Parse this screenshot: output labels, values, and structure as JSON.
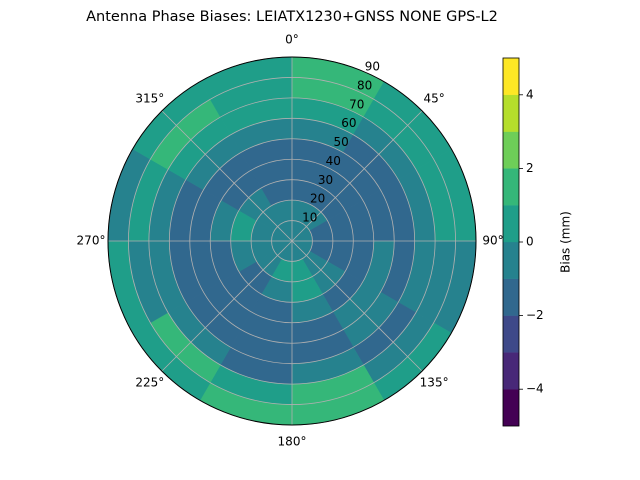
{
  "chart_data": {
    "type": "polar_contour",
    "title": "Antenna Phase Biases: LEIATX1230+GNSS NONE GPS-L2",
    "azimuth_edges": [
      0,
      30,
      60,
      90,
      120,
      150,
      180,
      210,
      240,
      270,
      300,
      330,
      360
    ],
    "r_edges": [
      0,
      10,
      20,
      30,
      40,
      50,
      60,
      70,
      80,
      90
    ],
    "z": [
      [
        -0.5,
        -0.5,
        -0.5,
        -0.5,
        -0.5,
        -0.5,
        -0.5,
        -0.5,
        -0.5,
        -0.5,
        -0.5,
        -0.5
      ],
      [
        -0.5,
        -0.5,
        -1.5,
        -1.5,
        -0.5,
        0.5,
        0.5,
        -0.5,
        -0.5,
        -0.5,
        -0.5,
        -0.5
      ],
      [
        -1.5,
        -1.5,
        -1.5,
        -1.5,
        -0.5,
        0.5,
        -0.5,
        -1.5,
        -0.5,
        0.5,
        -0.5,
        -1.5
      ],
      [
        -1.5,
        -1.5,
        -1.5,
        -1.5,
        -1.5,
        -0.5,
        -1.5,
        -1.5,
        -1.5,
        -0.5,
        -1.5,
        -1.5
      ],
      [
        -1.5,
        -1.5,
        -1.5,
        -0.5,
        -0.5,
        -1.5,
        -1.5,
        -1.5,
        -1.5,
        -1.5,
        -1.5,
        -1.5
      ],
      [
        -0.5,
        -1.5,
        -1.5,
        -1.5,
        -0.5,
        -1.5,
        -1.5,
        -1.5,
        -1.5,
        -1.5,
        -0.5,
        -0.5
      ],
      [
        0.5,
        -0.5,
        -0.5,
        -0.5,
        -1.5,
        -0.5,
        -1.5,
        -0.5,
        -0.5,
        -0.5,
        0.5,
        0.5
      ],
      [
        1.5,
        0.5,
        0.5,
        -0.5,
        -0.5,
        1.5,
        0.5,
        1.5,
        -0.5,
        0.5,
        1.5,
        0.5
      ],
      [
        1.5,
        0.5,
        0.5,
        -0.5,
        0.5,
        1.5,
        1.5,
        0.5,
        0.5,
        -0.5,
        0.5,
        0.5
      ]
    ],
    "rlim": [
      0,
      90
    ],
    "rticks": [
      10,
      20,
      30,
      40,
      50,
      60,
      70,
      80,
      90
    ],
    "thetaticks": [
      {
        "value": 0,
        "label": "0°"
      },
      {
        "value": 45,
        "label": "45°"
      },
      {
        "value": 90,
        "label": "90°"
      },
      {
        "value": 135,
        "label": "135°"
      },
      {
        "value": 180,
        "label": "180°"
      },
      {
        "value": 225,
        "label": "225°"
      },
      {
        "value": 270,
        "label": "270°"
      },
      {
        "value": 315,
        "label": "315°"
      }
    ],
    "levels": [
      -5,
      -4,
      -3,
      -2,
      -1,
      0,
      1,
      2,
      3,
      4,
      5
    ],
    "colors": [
      "#440154",
      "#482878",
      "#3e4989",
      "#31688e",
      "#26828e",
      "#1f9e89",
      "#35b779",
      "#6ece58",
      "#b5de2b",
      "#fde725"
    ],
    "clim": [
      -5,
      5
    ],
    "cticks": [
      {
        "value": -4,
        "label": "−4"
      },
      {
        "value": -2,
        "label": "−2"
      },
      0,
      2,
      4
    ],
    "colorbar_label": "Bias (mm)",
    "grid": true
  }
}
